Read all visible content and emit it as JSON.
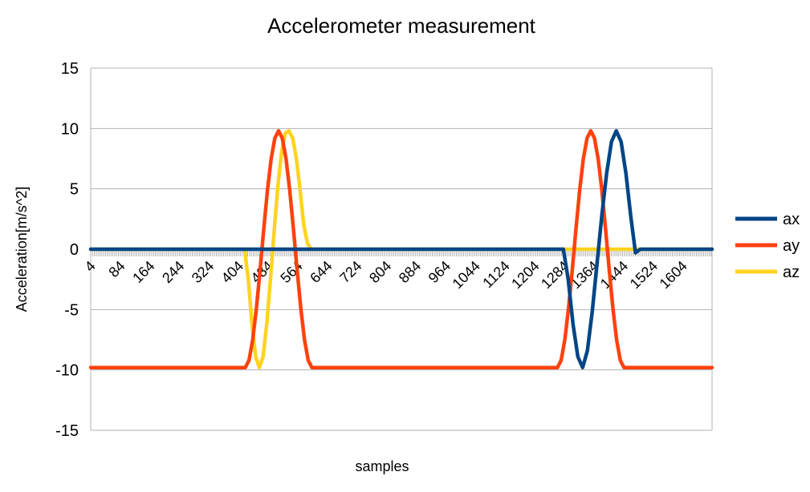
{
  "chart_data": {
    "type": "line",
    "title": "Accelerometer measurement",
    "xlabel": "samples",
    "ylabel": "Acceleration[m/s^2]",
    "ylim": [
      -15,
      15
    ],
    "yticks": [
      15,
      10,
      5,
      0,
      -5,
      -10,
      -15
    ],
    "xlim": [
      4,
      1684
    ],
    "xticks": [
      4,
      84,
      164,
      244,
      324,
      404,
      484,
      564,
      644,
      724,
      804,
      884,
      964,
      1044,
      1124,
      1204,
      1284,
      1364,
      1444,
      1524,
      1604
    ],
    "grid": true,
    "legend_position": "right",
    "colors": {
      "ax": "#004586",
      "ay": "#ff420e",
      "az": "#ffd320",
      "grid": "#b3b3b3"
    },
    "series": [
      {
        "name": "ax",
        "x": [
          4,
          1282,
          1295,
          1308,
          1321,
          1334,
          1347,
          1360,
          1373,
          1386,
          1399,
          1412,
          1425,
          1438,
          1451,
          1464,
          1477,
          1490,
          1684
        ],
        "values": [
          0,
          0,
          -2.5,
          -6.2,
          -8.9,
          -9.8,
          -8.4,
          -5.2,
          -1.2,
          2.8,
          6.3,
          8.9,
          9.8,
          8.9,
          6.3,
          2.8,
          -0.3,
          0,
          0
        ]
      },
      {
        "name": "ay",
        "x": [
          4,
          422,
          432,
          442,
          452,
          462,
          472,
          482,
          492,
          502,
          512,
          522,
          532,
          542,
          552,
          562,
          572,
          582,
          592,
          602,
          612,
          622,
          632,
          642,
          1266,
          1276,
          1286,
          1296,
          1306,
          1316,
          1326,
          1336,
          1346,
          1356,
          1366,
          1376,
          1386,
          1396,
          1406,
          1416,
          1426,
          1436,
          1446,
          1456,
          1466,
          1476,
          1486,
          1684
        ],
        "values": [
          -9.8,
          -9.8,
          -9.2,
          -7.5,
          -4.9,
          -1.7,
          1.7,
          4.9,
          7.5,
          9.2,
          9.8,
          9.2,
          7.5,
          4.9,
          1.7,
          -1.7,
          -4.9,
          -7.5,
          -9.2,
          -9.8,
          -9.8,
          -9.8,
          -9.8,
          -9.8,
          -9.8,
          -9.2,
          -7.5,
          -4.9,
          -1.7,
          1.7,
          4.9,
          7.5,
          9.2,
          9.8,
          9.2,
          7.5,
          4.9,
          1.7,
          -1.7,
          -4.9,
          -7.5,
          -9.2,
          -9.8,
          -9.8,
          -9.8,
          -9.8,
          -9.8,
          -9.8
        ]
      },
      {
        "name": "az",
        "x": [
          4,
          420,
          430,
          440,
          450,
          460,
          470,
          480,
          490,
          500,
          510,
          520,
          530,
          540,
          550,
          560,
          570,
          580,
          590,
          600,
          610,
          620,
          630,
          640,
          1684
        ],
        "values": [
          0,
          0,
          -2.5,
          -6.2,
          -8.9,
          -9.8,
          -8.9,
          -6.2,
          -2.5,
          1.5,
          5.2,
          8.0,
          9.6,
          9.8,
          9.2,
          7.5,
          4.9,
          2.0,
          0.5,
          0,
          0,
          0,
          0,
          0,
          0
        ]
      }
    ]
  }
}
